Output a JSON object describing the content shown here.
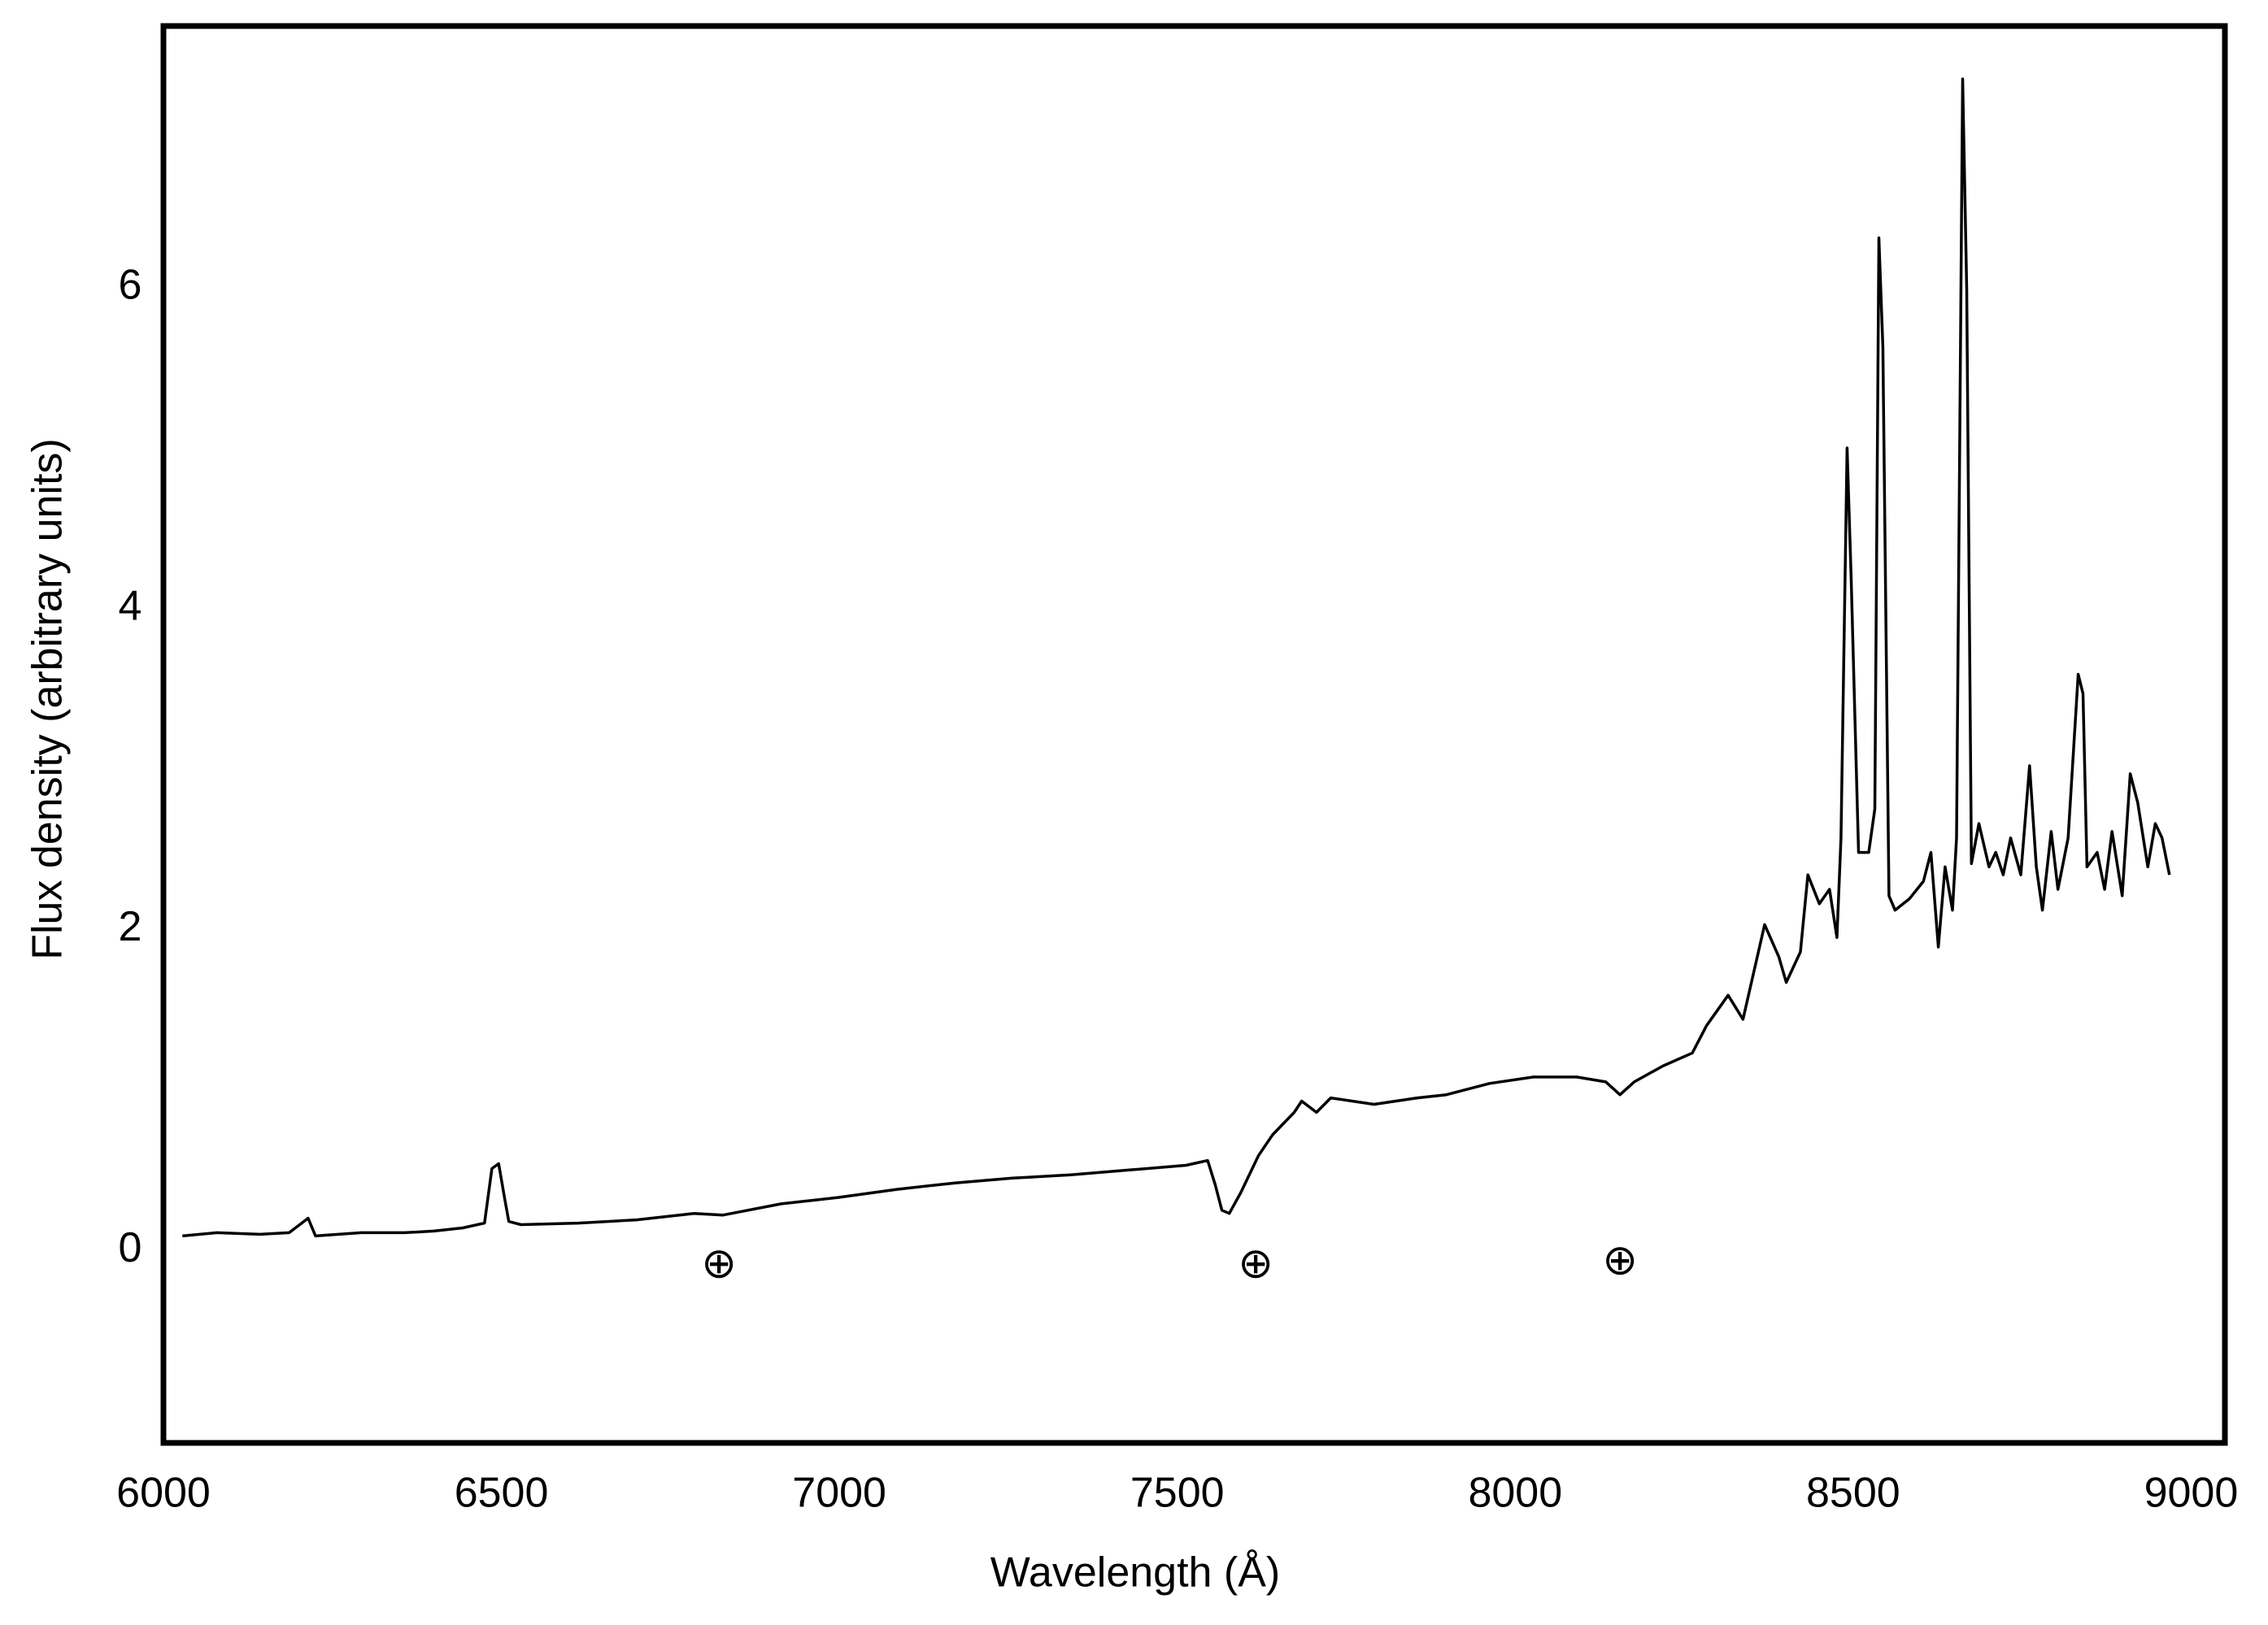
{
  "chart_data": {
    "type": "line",
    "x_label": "Wavelength (Å)",
    "y_label": "Flux density (arbitrary units)",
    "xlim": [
      6000,
      9050
    ],
    "xticks": [
      6000,
      6500,
      7000,
      7500,
      8000,
      8500,
      9000
    ],
    "ylim": [
      -1.2,
      7.63
    ],
    "yticks": [
      0,
      2,
      4,
      6
    ],
    "grid": false,
    "color": "#000000",
    "x": [
      6028,
      6079,
      6143,
      6186,
      6214,
      6225,
      6293,
      6357,
      6400,
      6443,
      6475,
      6486,
      6496,
      6505,
      6511,
      6529,
      6614,
      6700,
      6785,
      6828,
      6914,
      6999,
      7085,
      7171,
      7256,
      7342,
      7427,
      7513,
      7545,
      7556,
      7566,
      7577,
      7594,
      7620,
      7641,
      7673,
      7684,
      7706,
      7727,
      7791,
      7855,
      7898,
      7962,
      8027,
      8091,
      8134,
      8155,
      8176,
      8219,
      8262,
      8283,
      8315,
      8337,
      8369,
      8390,
      8401,
      8422,
      8433,
      8450,
      8465,
      8476,
      8482,
      8491,
      8497,
      8508,
      8523,
      8532,
      8538,
      8544,
      8553,
      8562,
      8583,
      8604,
      8615,
      8626,
      8636,
      8647,
      8653,
      8662,
      8668,
      8675,
      8686,
      8701,
      8711,
      8722,
      8733,
      8748,
      8761,
      8771,
      8780,
      8793,
      8803,
      8818,
      8833,
      8840,
      8846,
      8861,
      8872,
      8883,
      8898,
      8910,
      8921,
      8936,
      8947,
      8957,
      8968
    ],
    "values": [
      0.09,
      0.11,
      0.1,
      0.11,
      0.2,
      0.09,
      0.11,
      0.11,
      0.12,
      0.14,
      0.17,
      0.51,
      0.54,
      0.32,
      0.18,
      0.16,
      0.17,
      0.19,
      0.23,
      0.22,
      0.29,
      0.33,
      0.38,
      0.42,
      0.45,
      0.47,
      0.5,
      0.53,
      0.56,
      0.41,
      0.25,
      0.23,
      0.36,
      0.59,
      0.72,
      0.86,
      0.93,
      0.86,
      0.95,
      0.91,
      0.95,
      0.97,
      1.04,
      1.08,
      1.08,
      1.05,
      0.97,
      1.05,
      1.15,
      1.23,
      1.4,
      1.59,
      1.44,
      2.03,
      1.83,
      1.67,
      1.86,
      2.34,
      2.16,
      2.25,
      1.95,
      2.57,
      5.0,
      4.19,
      2.48,
      2.48,
      2.75,
      6.31,
      5.63,
      2.21,
      2.12,
      2.19,
      2.3,
      2.48,
      1.89,
      2.39,
      2.12,
      2.57,
      7.3,
      5.99,
      2.41,
      2.66,
      2.39,
      2.48,
      2.34,
      2.57,
      2.34,
      3.02,
      2.39,
      2.12,
      2.61,
      2.25,
      2.57,
      3.59,
      3.47,
      2.39,
      2.48,
      2.25,
      2.61,
      2.21,
      2.97,
      2.79,
      2.39,
      2.66,
      2.57,
      2.34
    ],
    "annotations": [
      {
        "text": "⊕",
        "x": 6822,
        "y": -0.1
      },
      {
        "text": "⊕",
        "x": 7616,
        "y": -0.1
      },
      {
        "text": "⊕",
        "x": 8155,
        "y": -0.08
      }
    ]
  }
}
